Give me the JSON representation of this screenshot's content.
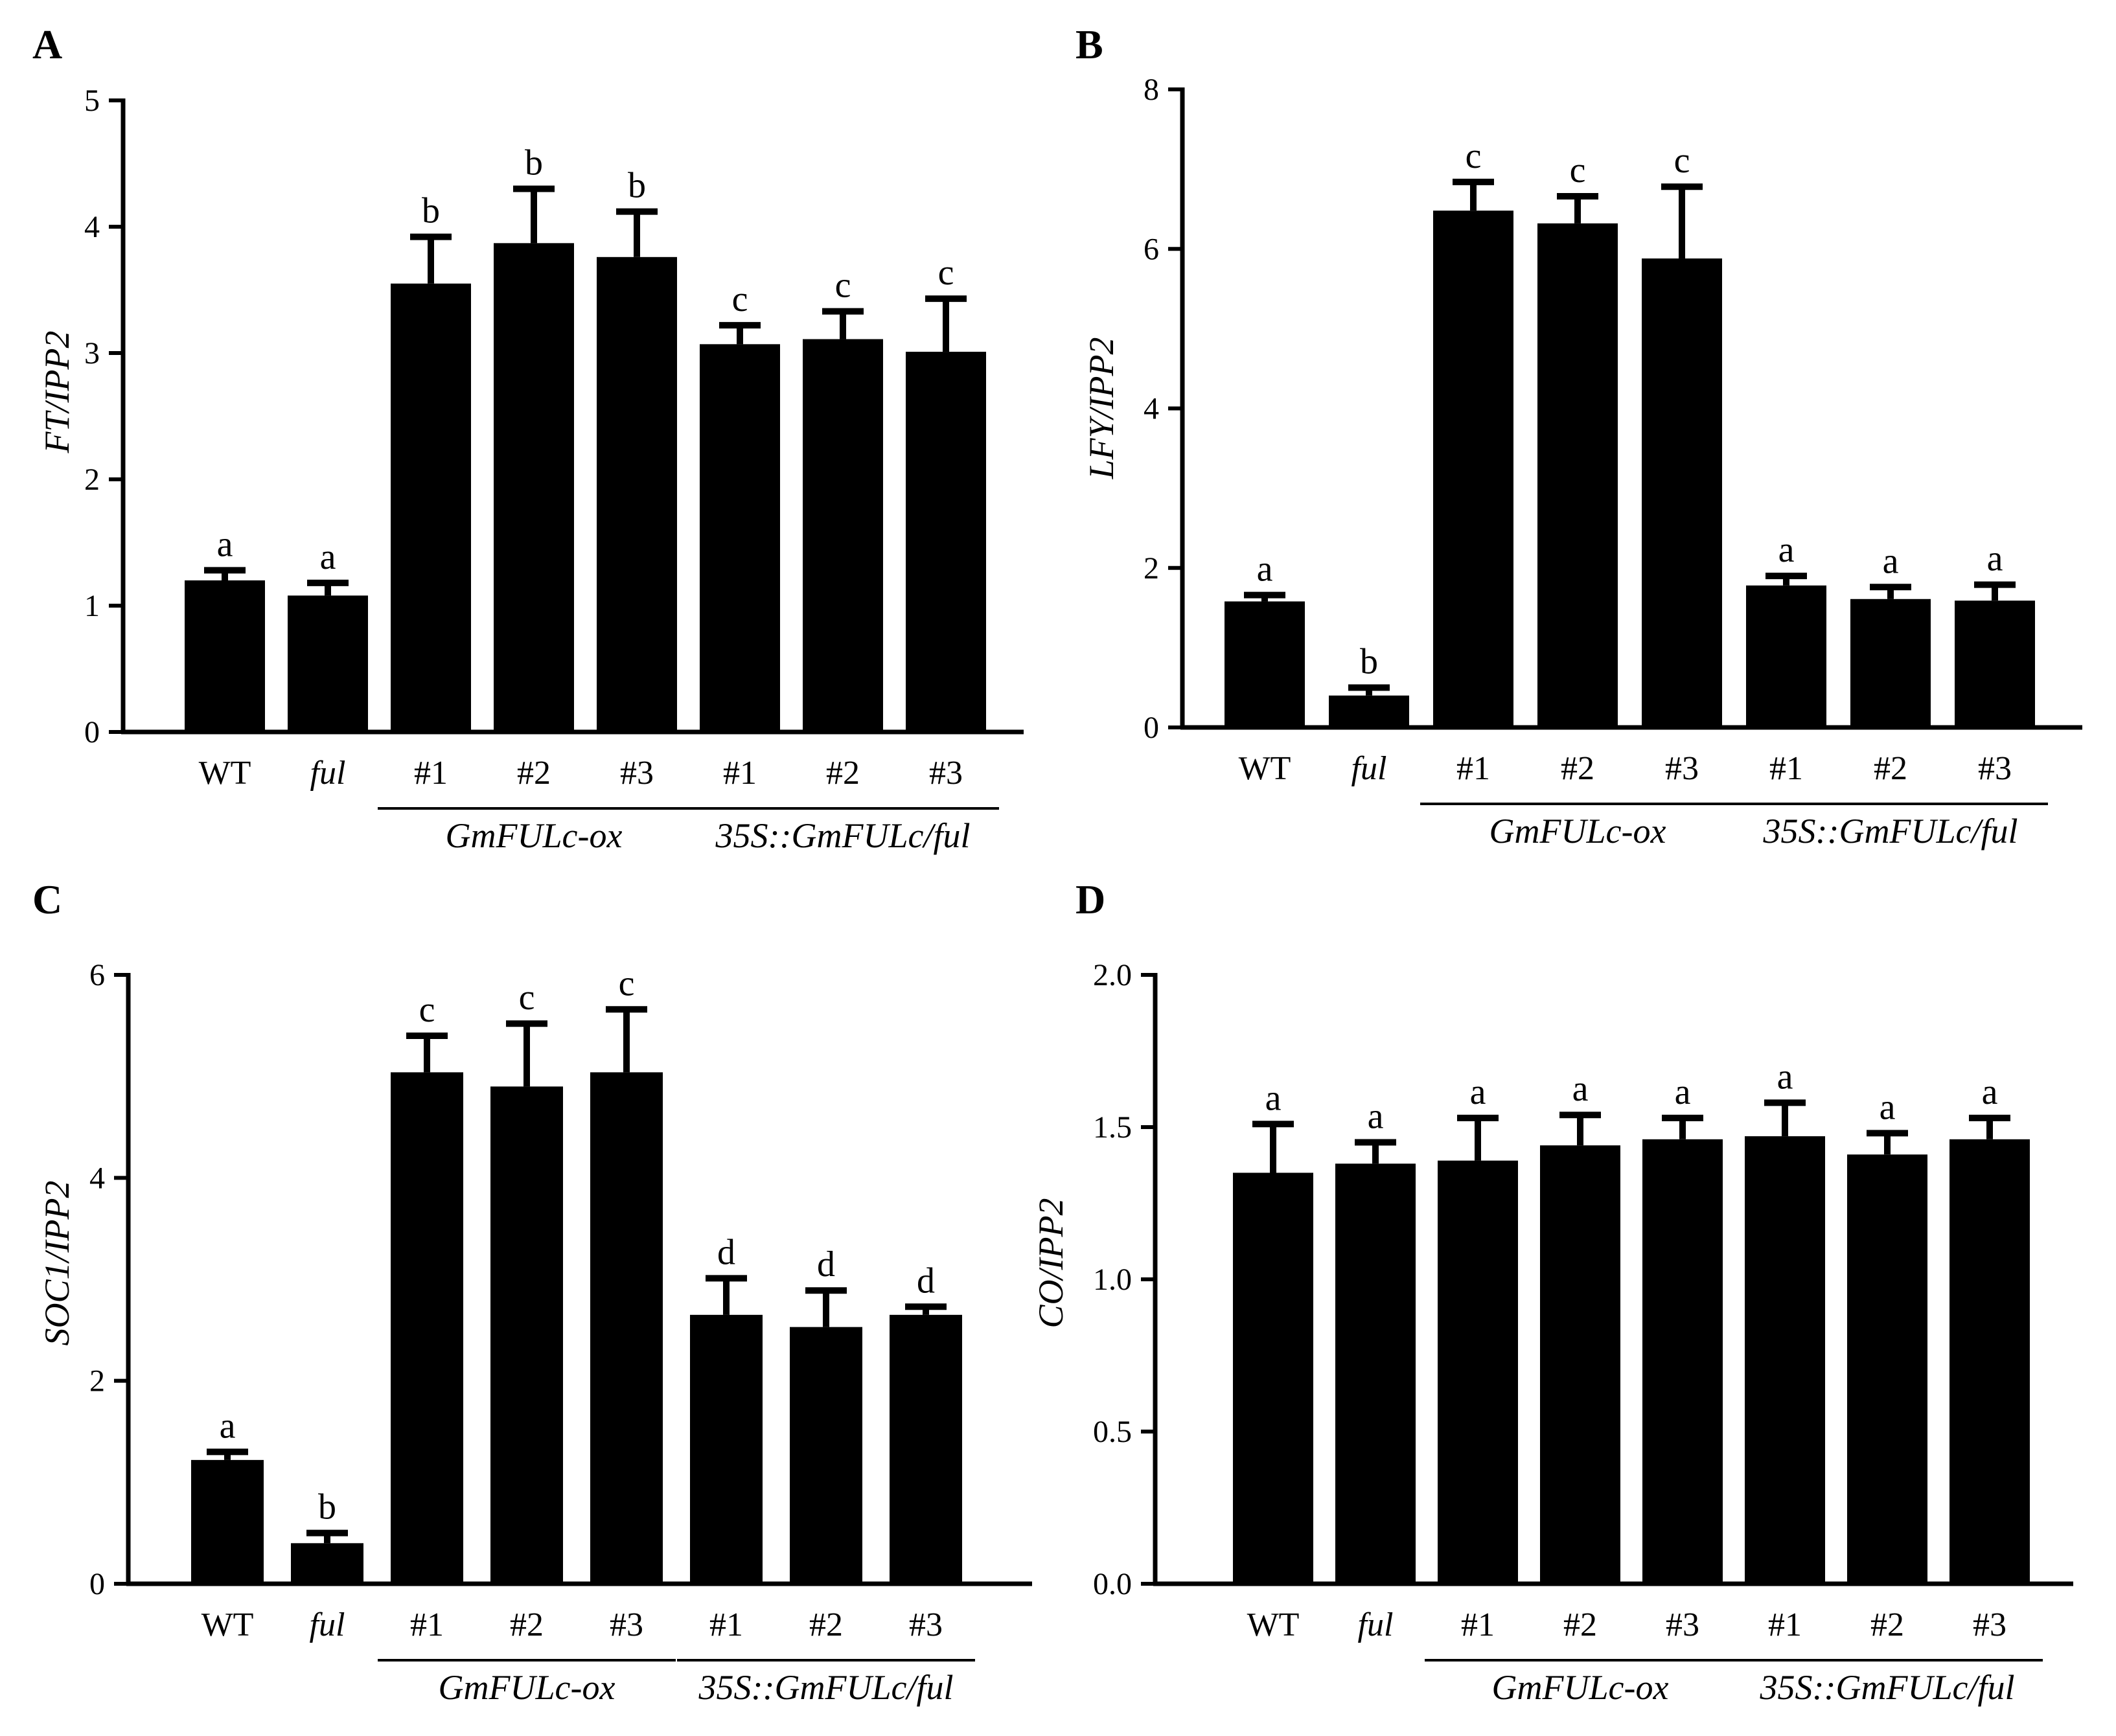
{
  "figure": {
    "bar_color": "#000000",
    "background": "#ffffff"
  },
  "chart_data": [
    {
      "panel": "A",
      "type": "bar",
      "ylabel": "FT/IPP2",
      "ylim": [
        0,
        5
      ],
      "yticks": [
        "0",
        "1",
        "2",
        "3",
        "4",
        "5"
      ],
      "categories": [
        "WT",
        "ful",
        "#1",
        "#2",
        "#3",
        "#1",
        "#2",
        "#3"
      ],
      "values": [
        1.2,
        1.08,
        3.55,
        3.87,
        3.76,
        3.07,
        3.11,
        3.01
      ],
      "errors": [
        0.08,
        0.1,
        0.37,
        0.43,
        0.36,
        0.15,
        0.22,
        0.42
      ],
      "letters": [
        "a",
        "a",
        "b",
        "b",
        "b",
        "c",
        "c",
        "c"
      ],
      "groups": [
        {
          "label": "GmFULc-ox",
          "from": 2,
          "to": 4
        },
        {
          "label": "35S::GmFULc/ful",
          "from": 5,
          "to": 7
        }
      ]
    },
    {
      "panel": "B",
      "type": "bar",
      "ylabel": "LFY/IPP2",
      "ylim": [
        0,
        8
      ],
      "yticks": [
        "0",
        "2",
        "4",
        "6",
        "8"
      ],
      "categories": [
        "WT",
        "ful",
        "#1",
        "#2",
        "#3",
        "#1",
        "#2",
        "#3"
      ],
      "values": [
        1.58,
        0.4,
        6.48,
        6.32,
        5.88,
        1.78,
        1.61,
        1.59
      ],
      "errors": [
        0.08,
        0.1,
        0.36,
        0.34,
        0.9,
        0.12,
        0.15,
        0.2
      ],
      "letters": [
        "a",
        "b",
        "c",
        "c",
        "c",
        "a",
        "a",
        "a"
      ],
      "groups": [
        {
          "label": "GmFULc-ox",
          "from": 2,
          "to": 4
        },
        {
          "label": "35S::GmFULc/ful",
          "from": 5,
          "to": 7
        }
      ]
    },
    {
      "panel": "C",
      "type": "bar",
      "ylabel": "SOC1/IPP2",
      "ylim": [
        0,
        6
      ],
      "yticks": [
        "0",
        "2",
        "4",
        "6"
      ],
      "categories": [
        "WT",
        "ful",
        "#1",
        "#2",
        "#3",
        "#1",
        "#2",
        "#3"
      ],
      "values": [
        1.22,
        0.4,
        5.04,
        4.9,
        5.04,
        2.65,
        2.53,
        2.65
      ],
      "errors": [
        0.08,
        0.1,
        0.36,
        0.62,
        0.62,
        0.36,
        0.36,
        0.08
      ],
      "letters": [
        "a",
        "b",
        "c",
        "c",
        "c",
        "d",
        "d",
        "d"
      ],
      "groups": [
        {
          "label": "GmFULc-ox",
          "from": 2,
          "to": 4
        },
        {
          "label": "35S::GmFULc/ful",
          "from": 5,
          "to": 7
        }
      ]
    },
    {
      "panel": "D",
      "type": "bar",
      "ylabel": "CO/IPP2",
      "ylim": [
        0,
        2.0
      ],
      "yticks": [
        "0.0",
        "0.5",
        "1.0",
        "1.5",
        "2.0"
      ],
      "categories": [
        "WT",
        "ful",
        "#1",
        "#2",
        "#3",
        "#1",
        "#2",
        "#3"
      ],
      "values": [
        1.35,
        1.38,
        1.39,
        1.44,
        1.46,
        1.47,
        1.41,
        1.46
      ],
      "errors": [
        0.16,
        0.07,
        0.14,
        0.1,
        0.07,
        0.11,
        0.07,
        0.07
      ],
      "letters": [
        "a",
        "a",
        "a",
        "a",
        "a",
        "a",
        "a",
        "a"
      ],
      "groups": [
        {
          "label": "GmFULc-ox",
          "from": 2,
          "to": 4
        },
        {
          "label": "35S::GmFULc/ful",
          "from": 5,
          "to": 7
        }
      ]
    }
  ]
}
